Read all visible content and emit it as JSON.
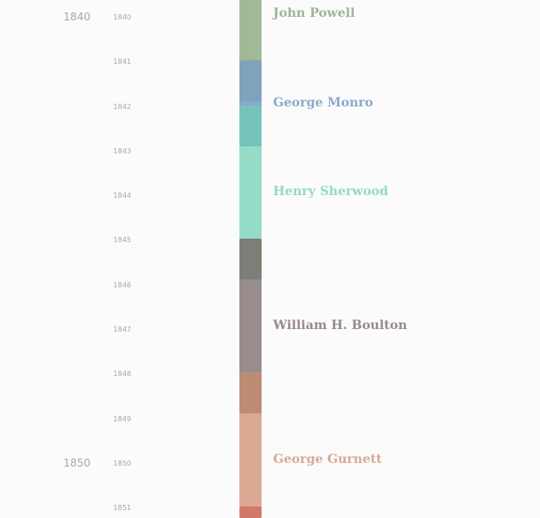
{
  "ticks": {
    "major": [
      "1840",
      "1850"
    ],
    "minor": [
      "1840",
      "1841",
      "1842",
      "1843",
      "1844",
      "1845",
      "1846",
      "1847",
      "1848",
      "1849",
      "1850",
      "1851"
    ]
  },
  "mayors": [
    {
      "name": "John Powell",
      "color": "#9fb594"
    },
    {
      "name": "George Monro",
      "color": "#8ba9cc"
    },
    {
      "name": "Henry Sherwood",
      "color": "#94d9c5"
    },
    {
      "name": "William H. Boulton",
      "color": "#978a8a"
    },
    {
      "name": "George Gurnett",
      "color": "#d9a893"
    }
  ]
}
